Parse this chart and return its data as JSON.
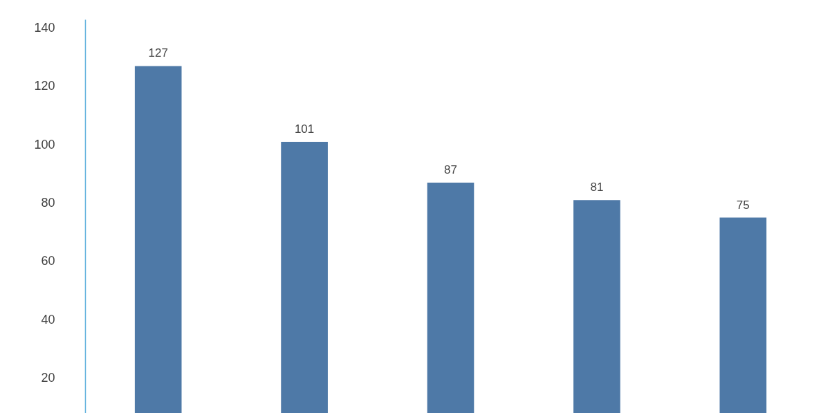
{
  "chart_data": {
    "type": "bar",
    "categories": [
      null,
      null,
      null,
      null,
      null
    ],
    "values": [
      127,
      101,
      87,
      81,
      75
    ],
    "color": "#4e79a7",
    "ylim": [
      8,
      143
    ],
    "yticks": [
      20,
      40,
      60,
      80,
      100,
      120,
      140
    ],
    "data_labels": true,
    "grid": false
  }
}
